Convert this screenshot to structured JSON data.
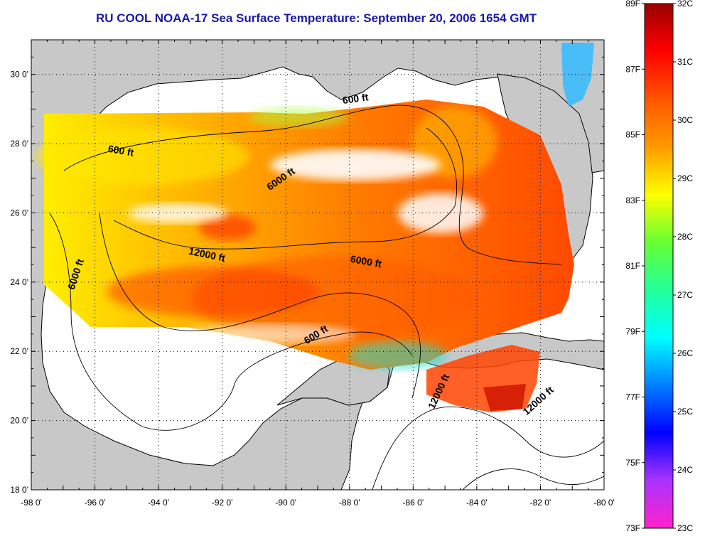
{
  "title": "RU COOL  NOAA-17  Sea Surface Temperature:  September 20, 2006 1654 GMT",
  "map": {
    "lon_range": [
      -98,
      -80
    ],
    "lat_range": [
      18,
      31
    ],
    "lon_ticks": [
      "-98 0'",
      "-96 0'",
      "-94 0'",
      "-92 0'",
      "-90 0'",
      "-88 0'",
      "-86 0'",
      "-84 0'",
      "-82 0'",
      "-80 0'"
    ],
    "lat_ticks": [
      "18 0'",
      "20 0'",
      "22 0'",
      "24 0'",
      "26 0'",
      "28 0'",
      "30 0'"
    ],
    "colors": {
      "land": "#c8c8c8",
      "ocean": "#ffffff",
      "coast": "#000000"
    }
  },
  "contours": [
    {
      "label": "600 ft",
      "lon": -95.2,
      "lat": 27.7,
      "rot": 10
    },
    {
      "label": "600 ft",
      "lon": -87.8,
      "lat": 29.2,
      "rot": -8
    },
    {
      "label": "6000 ft",
      "lon": -90.1,
      "lat": 26.9,
      "rot": -35
    },
    {
      "label": "12000 ft",
      "lon": -92.5,
      "lat": 24.7,
      "rot": 12
    },
    {
      "label": "6000 ft",
      "lon": -87.5,
      "lat": 24.5,
      "rot": 10
    },
    {
      "label": "6000 ft",
      "lon": -96.5,
      "lat": 24.2,
      "rot": -72
    },
    {
      "label": "600 ft",
      "lon": -89.0,
      "lat": 22.4,
      "rot": -32
    },
    {
      "label": "12000 ft",
      "lon": -85.1,
      "lat": 20.8,
      "rot": -65
    },
    {
      "label": "12000 ft",
      "lon": -82.0,
      "lat": 20.5,
      "rot": -42
    }
  ],
  "colorbar": {
    "f_labels": [
      "89F",
      "87F",
      "85F",
      "83F",
      "81F",
      "79F",
      "77F",
      "75F",
      "73F"
    ],
    "c_labels": [
      "32C",
      "31C",
      "30C",
      "29C",
      "28C",
      "27C",
      "26C",
      "25C",
      "24C",
      "23C"
    ],
    "c_range": [
      23,
      32
    ],
    "stops": [
      "#ff22cc",
      "#aa33ff",
      "#0000ff",
      "#0080ff",
      "#00ffff",
      "#22ff99",
      "#66ff33",
      "#ffff00",
      "#ff9900",
      "#ff5500",
      "#ff0000",
      "#9a0000"
    ]
  }
}
